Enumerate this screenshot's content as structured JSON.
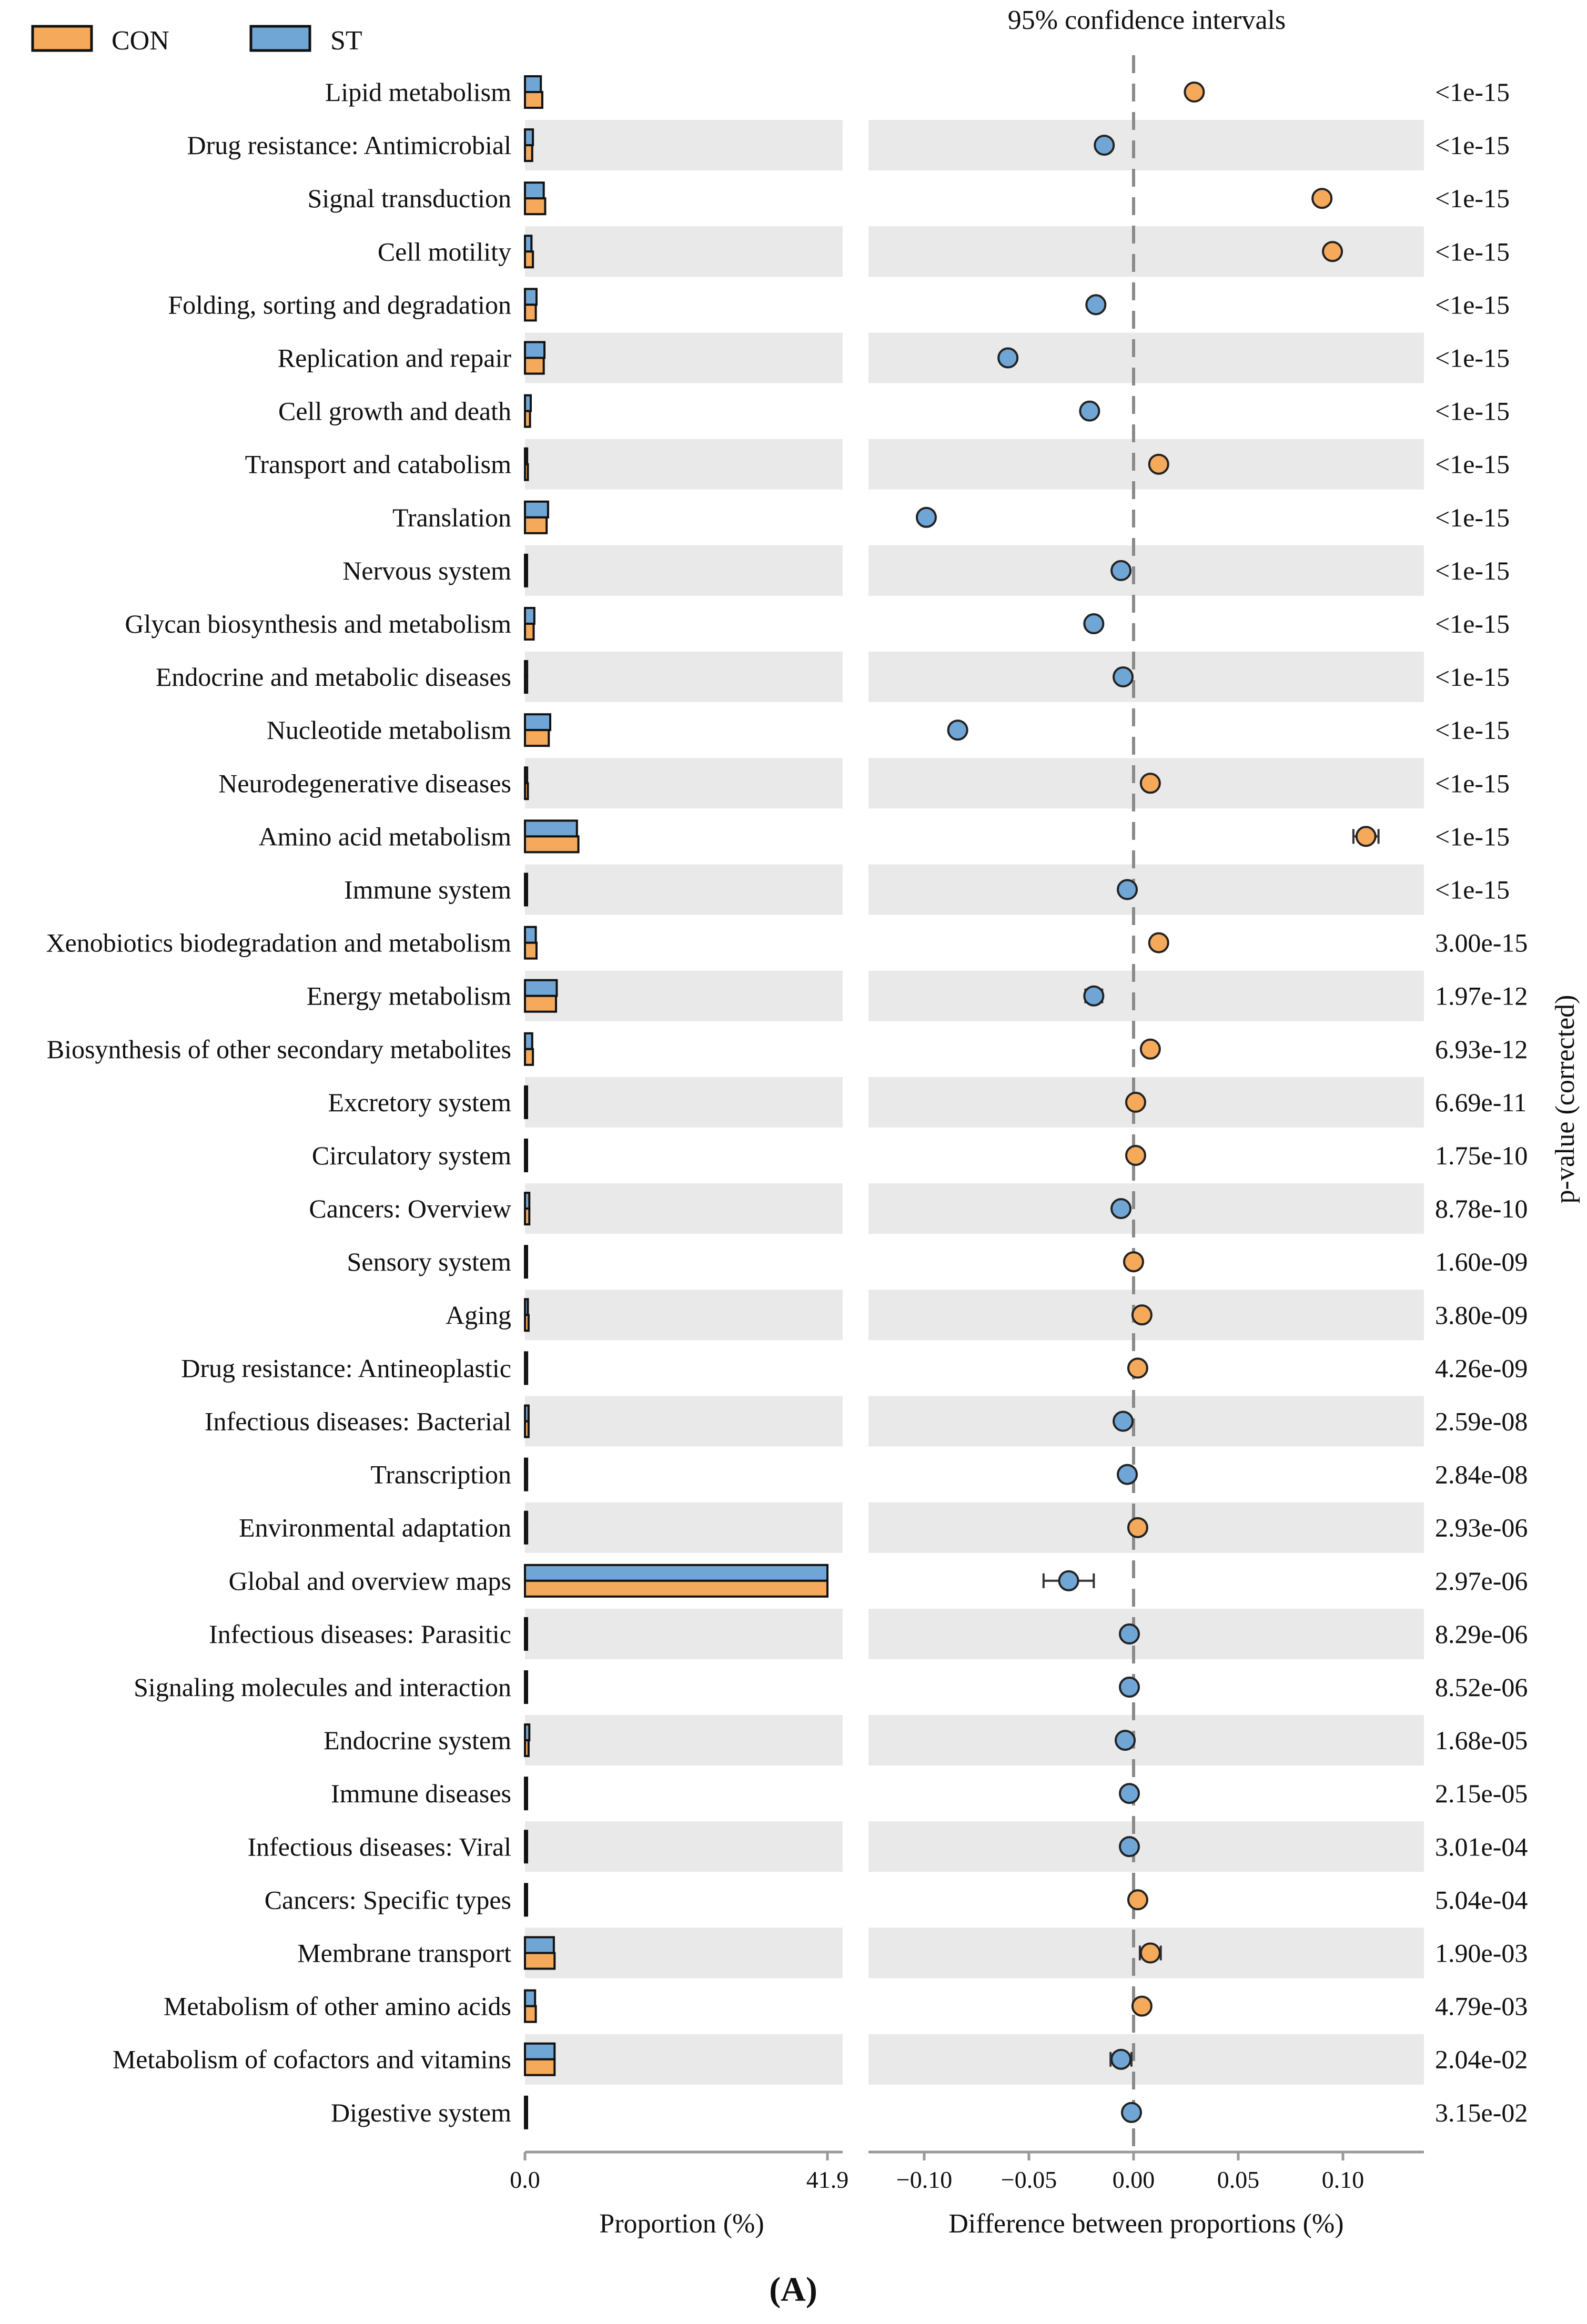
{
  "chart_data": {
    "type": "extended_error_bar",
    "legend": [
      {
        "name": "CON",
        "color": "#f5a95a"
      },
      {
        "name": "ST",
        "color": "#6fa6d6"
      }
    ],
    "ci_title": "95% confidence intervals",
    "left_axis": {
      "ticks": [
        "0.0",
        "41.9"
      ],
      "xlim": [
        0,
        41.9
      ],
      "xlabel": "Proportion (%)"
    },
    "right_axis": {
      "ticks": [
        "−0.10",
        "−0.05",
        "0.00",
        "0.05",
        "0.10"
      ],
      "tick_values": [
        -0.1,
        -0.05,
        0.0,
        0.05,
        0.1
      ],
      "xlim": [
        -0.125,
        0.138
      ],
      "xlabel": "Difference between proportions (%)"
    },
    "pvalue_label": "p-value (corrected)",
    "panel_label": "(A)",
    "rows": [
      {
        "category": "Lipid metabolism",
        "con": 2.4,
        "st": 2.2,
        "diff": 0.029,
        "ci_low": 0.026,
        "ci_high": 0.032,
        "pvalue": "<1e-15"
      },
      {
        "category": "Drug resistance: Antimicrobial",
        "con": 1.0,
        "st": 1.1,
        "diff": -0.014,
        "ci_low": -0.016,
        "ci_high": -0.012,
        "pvalue": "<1e-15"
      },
      {
        "category": "Signal transduction",
        "con": 2.8,
        "st": 2.6,
        "diff": 0.09,
        "ci_low": 0.087,
        "ci_high": 0.093,
        "pvalue": "<1e-15"
      },
      {
        "category": "Cell motility",
        "con": 1.1,
        "st": 0.9,
        "diff": 0.095,
        "ci_low": 0.093,
        "ci_high": 0.097,
        "pvalue": "<1e-15"
      },
      {
        "category": "Folding, sorting and degradation",
        "con": 1.5,
        "st": 1.6,
        "diff": -0.018,
        "ci_low": -0.02,
        "ci_high": -0.016,
        "pvalue": "<1e-15"
      },
      {
        "category": "Replication and repair",
        "con": 2.6,
        "st": 2.7,
        "diff": -0.06,
        "ci_low": -0.063,
        "ci_high": -0.057,
        "pvalue": "<1e-15"
      },
      {
        "category": "Cell growth and death",
        "con": 0.7,
        "st": 0.8,
        "diff": -0.021,
        "ci_low": -0.023,
        "ci_high": -0.019,
        "pvalue": "<1e-15"
      },
      {
        "category": "Transport and catabolism",
        "con": 0.4,
        "st": 0.3,
        "diff": 0.012,
        "ci_low": 0.01,
        "ci_high": 0.014,
        "pvalue": "<1e-15"
      },
      {
        "category": "Translation",
        "con": 3.0,
        "st": 3.2,
        "diff": -0.099,
        "ci_low": -0.102,
        "ci_high": -0.096,
        "pvalue": "<1e-15"
      },
      {
        "category": "Nervous system",
        "con": 0.2,
        "st": 0.2,
        "diff": -0.006,
        "ci_low": -0.007,
        "ci_high": -0.005,
        "pvalue": "<1e-15"
      },
      {
        "category": "Glycan biosynthesis and metabolism",
        "con": 1.2,
        "st": 1.3,
        "diff": -0.019,
        "ci_low": -0.021,
        "ci_high": -0.017,
        "pvalue": "<1e-15"
      },
      {
        "category": "Endocrine and metabolic diseases",
        "con": 0.3,
        "st": 0.3,
        "diff": -0.005,
        "ci_low": -0.006,
        "ci_high": -0.004,
        "pvalue": "<1e-15"
      },
      {
        "category": "Nucleotide metabolism",
        "con": 3.3,
        "st": 3.5,
        "diff": -0.084,
        "ci_low": -0.087,
        "ci_high": -0.081,
        "pvalue": "<1e-15"
      },
      {
        "category": "Neurodegenerative diseases",
        "con": 0.4,
        "st": 0.3,
        "diff": 0.008,
        "ci_low": 0.006,
        "ci_high": 0.01,
        "pvalue": "<1e-15"
      },
      {
        "category": "Amino acid metabolism",
        "con": 7.4,
        "st": 7.2,
        "diff": 0.111,
        "ci_low": 0.105,
        "ci_high": 0.117,
        "pvalue": "<1e-15"
      },
      {
        "category": "Immune system",
        "con": 0.2,
        "st": 0.2,
        "diff": -0.003,
        "ci_low": -0.004,
        "ci_high": -0.002,
        "pvalue": "<1e-15"
      },
      {
        "category": "Xenobiotics biodegradation and metabolism",
        "con": 1.6,
        "st": 1.5,
        "diff": 0.012,
        "ci_low": 0.01,
        "ci_high": 0.014,
        "pvalue": "3.00e-15"
      },
      {
        "category": "Energy metabolism",
        "con": 4.3,
        "st": 4.4,
        "diff": -0.019,
        "ci_low": -0.023,
        "ci_high": -0.015,
        "pvalue": "1.97e-12"
      },
      {
        "category": "Biosynthesis of other secondary metabolites",
        "con": 1.1,
        "st": 1.0,
        "diff": 0.008,
        "ci_low": 0.006,
        "ci_high": 0.01,
        "pvalue": "6.93e-12"
      },
      {
        "category": "Excretory system",
        "con": 0.1,
        "st": 0.1,
        "diff": 0.001,
        "ci_low": 0.0,
        "ci_high": 0.002,
        "pvalue": "6.69e-11"
      },
      {
        "category": "Circulatory system",
        "con": 0.1,
        "st": 0.1,
        "diff": 0.001,
        "ci_low": 0.0,
        "ci_high": 0.002,
        "pvalue": "1.75e-10"
      },
      {
        "category": "Cancers: Overview",
        "con": 0.6,
        "st": 0.6,
        "diff": -0.006,
        "ci_low": -0.008,
        "ci_high": -0.004,
        "pvalue": "8.78e-10"
      },
      {
        "category": "Sensory system",
        "con": 0.1,
        "st": 0.1,
        "diff": 0.0,
        "ci_low": -0.001,
        "ci_high": 0.001,
        "pvalue": "1.60e-09"
      },
      {
        "category": "Aging",
        "con": 0.5,
        "st": 0.4,
        "diff": 0.004,
        "ci_low": 0.003,
        "ci_high": 0.005,
        "pvalue": "3.80e-09"
      },
      {
        "category": "Drug resistance: Antineoplastic",
        "con": 0.3,
        "st": 0.3,
        "diff": 0.002,
        "ci_low": 0.001,
        "ci_high": 0.003,
        "pvalue": "4.26e-09"
      },
      {
        "category": "Infectious diseases: Bacterial",
        "con": 0.5,
        "st": 0.5,
        "diff": -0.005,
        "ci_low": -0.007,
        "ci_high": -0.003,
        "pvalue": "2.59e-08"
      },
      {
        "category": "Transcription",
        "con": 0.3,
        "st": 0.3,
        "diff": -0.003,
        "ci_low": -0.004,
        "ci_high": -0.002,
        "pvalue": "2.84e-08"
      },
      {
        "category": "Environmental adaptation",
        "con": 0.3,
        "st": 0.3,
        "diff": 0.002,
        "ci_low": 0.001,
        "ci_high": 0.003,
        "pvalue": "2.93e-06"
      },
      {
        "category": "Global and overview maps",
        "con": 41.9,
        "st": 41.9,
        "diff": -0.031,
        "ci_low": -0.043,
        "ci_high": -0.019,
        "pvalue": "2.97e-06"
      },
      {
        "category": "Infectious diseases: Parasitic",
        "con": 0.1,
        "st": 0.1,
        "diff": -0.002,
        "ci_low": -0.003,
        "ci_high": -0.001,
        "pvalue": "8.29e-06"
      },
      {
        "category": "Signaling molecules and interaction",
        "con": 0.1,
        "st": 0.1,
        "diff": -0.002,
        "ci_low": -0.003,
        "ci_high": -0.001,
        "pvalue": "8.52e-06"
      },
      {
        "category": "Endocrine system",
        "con": 0.5,
        "st": 0.6,
        "diff": -0.004,
        "ci_low": -0.006,
        "ci_high": -0.002,
        "pvalue": "1.68e-05"
      },
      {
        "category": "Immune diseases",
        "con": 0.1,
        "st": 0.1,
        "diff": -0.002,
        "ci_low": -0.003,
        "ci_high": -0.001,
        "pvalue": "2.15e-05"
      },
      {
        "category": "Infectious diseases: Viral",
        "con": 0.1,
        "st": 0.1,
        "diff": -0.002,
        "ci_low": -0.003,
        "ci_high": -0.001,
        "pvalue": "3.01e-04"
      },
      {
        "category": "Cancers: Specific types",
        "con": 0.1,
        "st": 0.1,
        "diff": 0.002,
        "ci_low": 0.001,
        "ci_high": 0.003,
        "pvalue": "5.04e-04"
      },
      {
        "category": "Membrane transport",
        "con": 4.1,
        "st": 4.0,
        "diff": 0.008,
        "ci_low": 0.003,
        "ci_high": 0.013,
        "pvalue": "1.90e-03"
      },
      {
        "category": "Metabolism of other amino acids",
        "con": 1.5,
        "st": 1.4,
        "diff": 0.004,
        "ci_low": 0.002,
        "ci_high": 0.006,
        "pvalue": "4.79e-03"
      },
      {
        "category": "Metabolism of cofactors and vitamins",
        "con": 4.1,
        "st": 4.1,
        "diff": -0.006,
        "ci_low": -0.011,
        "ci_high": -0.001,
        "pvalue": "2.04e-02"
      },
      {
        "category": "Digestive system",
        "con": 0.1,
        "st": 0.1,
        "diff": -0.001,
        "ci_low": -0.002,
        "ci_high": 0.0,
        "pvalue": "3.15e-02"
      }
    ]
  }
}
